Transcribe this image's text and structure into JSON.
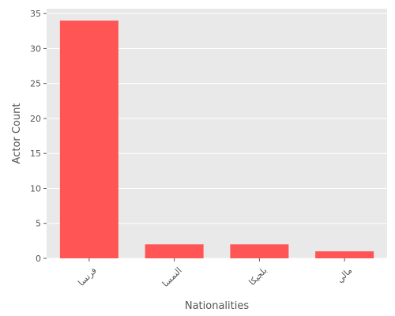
{
  "chart_data": {
    "type": "bar",
    "title": "",
    "xlabel": "Nationalities",
    "ylabel": "Actor Count",
    "categories": [
      "فرنسا",
      "النمسا",
      "بلجيكا",
      "مالي"
    ],
    "values": [
      34,
      2,
      2,
      1
    ],
    "ylim": [
      0,
      35.7
    ],
    "yticks": [
      0,
      5,
      10,
      15,
      20,
      25,
      30,
      35
    ],
    "grid": true,
    "legend": "none",
    "colors": {
      "bar": "#FF5555",
      "plot_background": "#E9E9E9",
      "grid": "#FFFFFF",
      "text": "#555555"
    }
  }
}
